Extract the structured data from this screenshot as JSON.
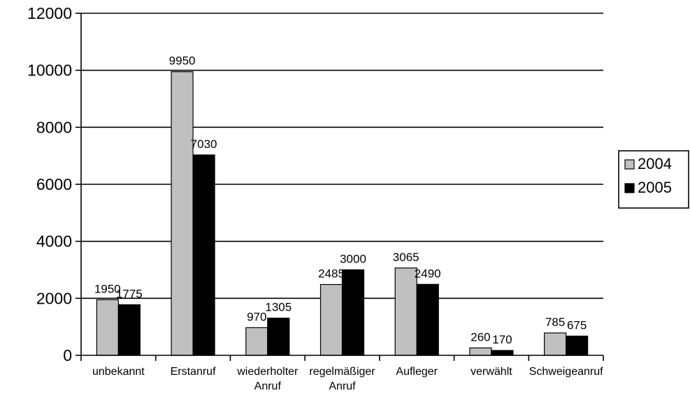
{
  "chart_data": {
    "type": "bar",
    "categories": [
      [
        "unbekannt"
      ],
      [
        "Erstanruf"
      ],
      [
        "wiederholter",
        "Anruf"
      ],
      [
        "regelmäßiger",
        "Anruf"
      ],
      [
        "Aufleger"
      ],
      [
        "verwählt"
      ],
      [
        "Schweigeanruf"
      ]
    ],
    "series": [
      {
        "name": "2004",
        "values": [
          1950,
          9950,
          970,
          2485,
          3065,
          260,
          785
        ],
        "color": "#c0c0c0"
      },
      {
        "name": "2005",
        "values": [
          1775,
          7030,
          1305,
          3000,
          2490,
          170,
          675
        ],
        "color": "#000000"
      }
    ],
    "ylim": [
      0,
      12000
    ],
    "yticks": [
      "0",
      "2000",
      "4000",
      "6000",
      "8000",
      "10000",
      "12000"
    ],
    "grid": true,
    "legend_position": "right",
    "title": "",
    "xlabel": "",
    "ylabel": ""
  }
}
